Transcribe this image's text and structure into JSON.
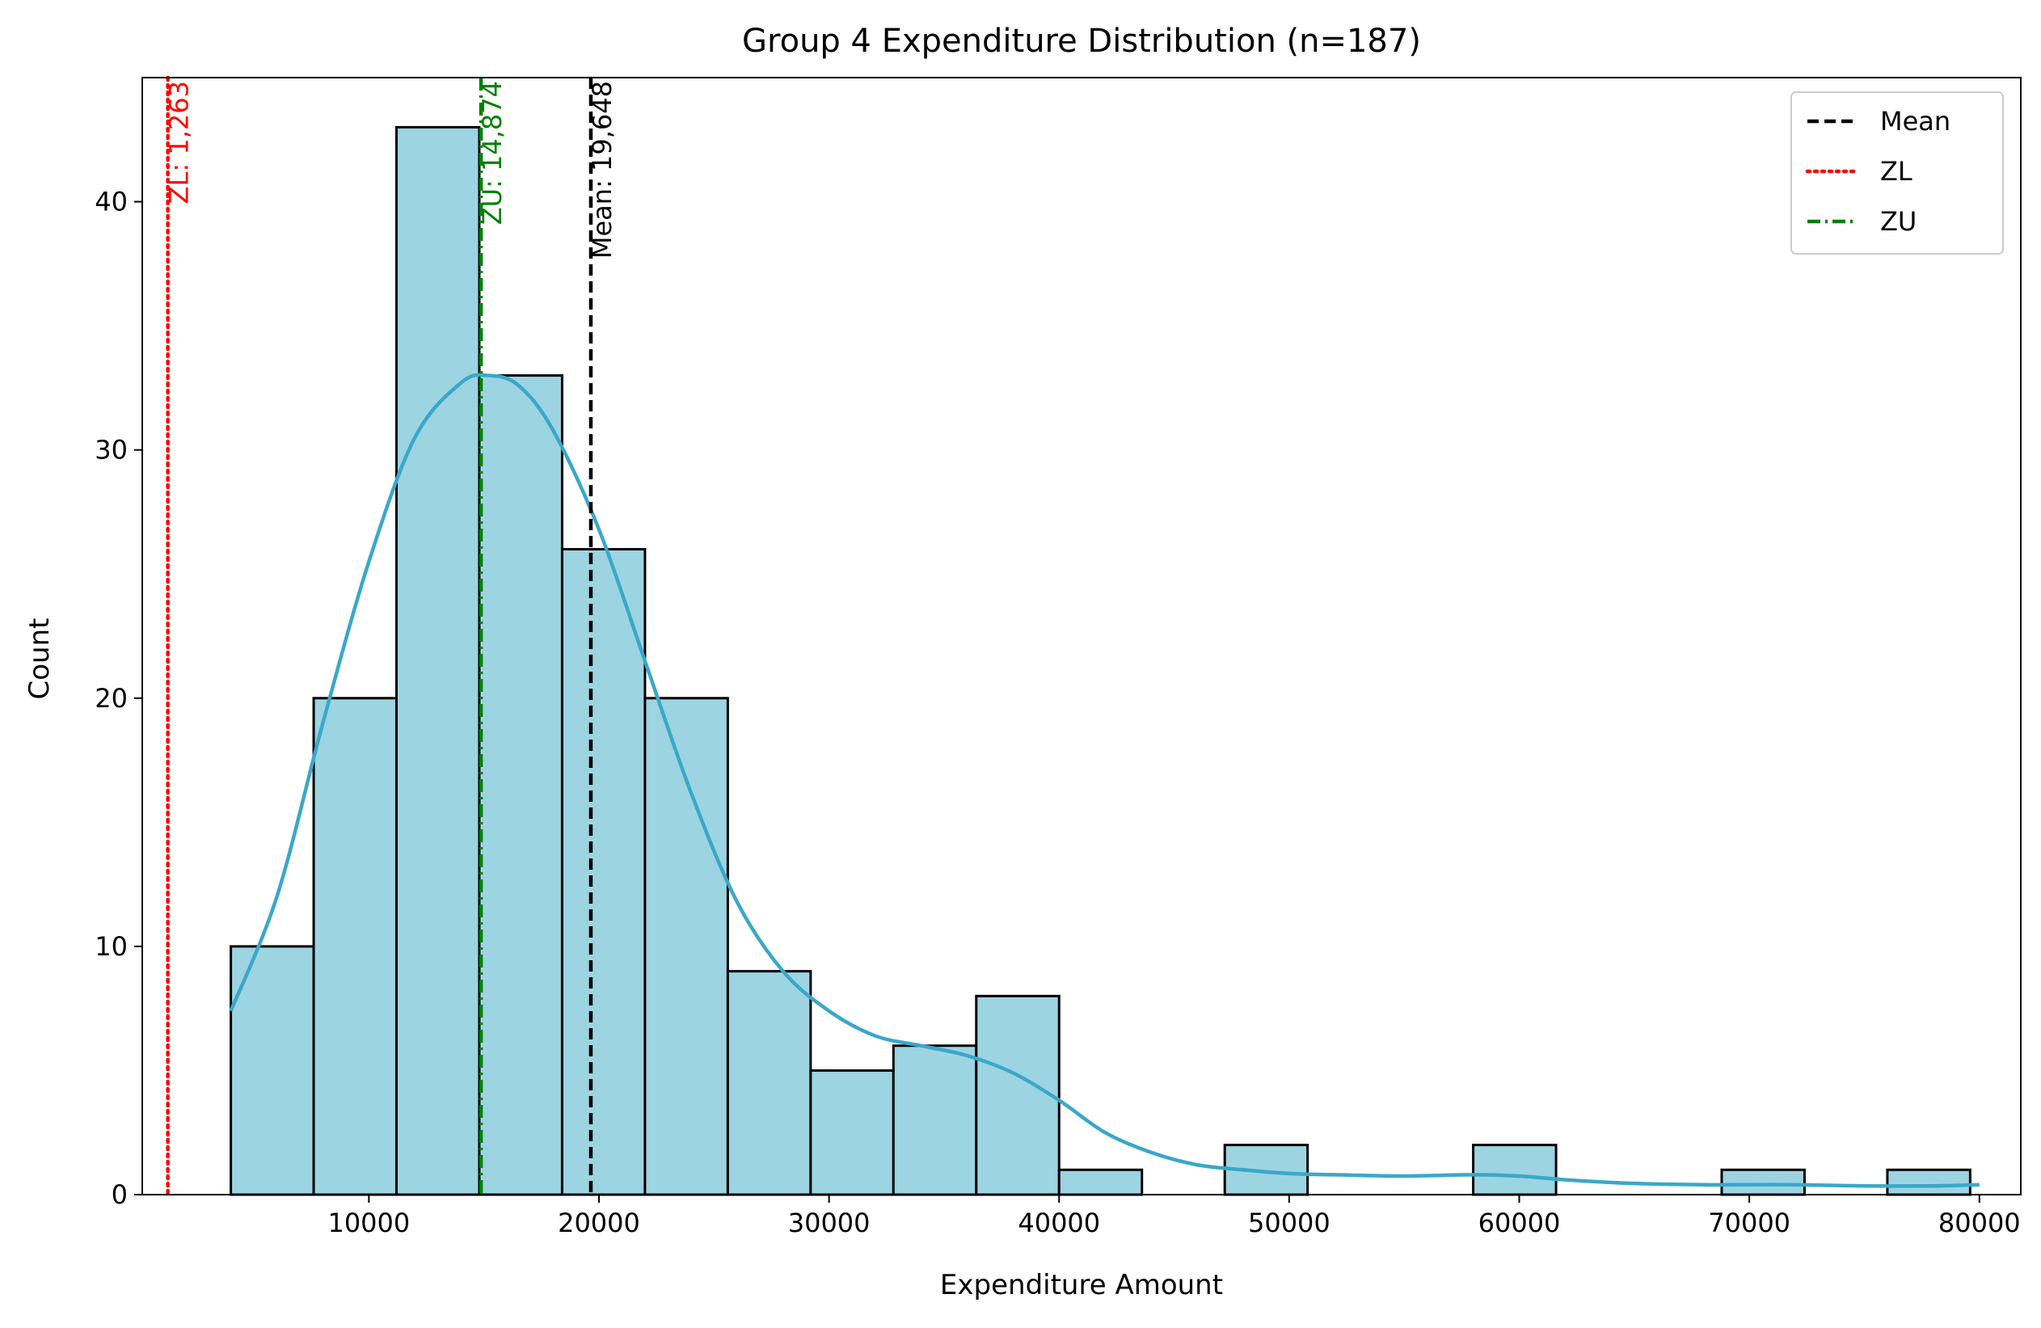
{
  "chart_data": {
    "type": "bar",
    "title": "Group 4 Expenditure Distribution (n=187)",
    "xlabel": "Expenditure Amount",
    "ylabel": "Count",
    "xlim": [
      150,
      81800
    ],
    "ylim": [
      0,
      45
    ],
    "xticks": [
      10000,
      20000,
      30000,
      40000,
      50000,
      60000,
      70000,
      80000
    ],
    "xtick_labels": [
      "10000",
      "20000",
      "30000",
      "40000",
      "50000",
      "60000",
      "70000",
      "80000"
    ],
    "yticks": [
      0,
      10,
      20,
      30,
      40
    ],
    "ytick_labels": [
      "0",
      "10",
      "20",
      "30",
      "40"
    ],
    "grid": false,
    "bins": {
      "edges": [
        4000,
        7600,
        11200,
        14800,
        18400,
        22000,
        25600,
        29200,
        32800,
        36400,
        40000,
        43600,
        47200,
        50800,
        54400,
        58000,
        61600,
        65200,
        68800,
        72400,
        76000,
        79600
      ],
      "counts": [
        10,
        20,
        43,
        33,
        26,
        20,
        9,
        5,
        6,
        8,
        1,
        0,
        2,
        0,
        0,
        2,
        0,
        0,
        1,
        0,
        1
      ]
    },
    "kde": {
      "x": [
        4000,
        6000,
        8000,
        10000,
        12000,
        14000,
        15200,
        16500,
        18000,
        20000,
        22000,
        24000,
        26000,
        28000,
        30000,
        32000,
        34000,
        36000,
        38000,
        40000,
        42000,
        44000,
        46000,
        48000,
        50000,
        52000,
        55000,
        58000,
        60000,
        62000,
        65000,
        68000,
        70000,
        72000,
        75000,
        78000,
        80000
      ],
      "y": [
        7.4,
        12,
        19,
        25.5,
        30.5,
        32.7,
        33,
        32.6,
        30.8,
        26.8,
        21.5,
        16.2,
        11.8,
        9,
        7.4,
        6.4,
        6,
        5.6,
        4.9,
        3.8,
        2.5,
        1.7,
        1.2,
        1.0,
        0.85,
        0.8,
        0.75,
        0.8,
        0.75,
        0.6,
        0.45,
        0.4,
        0.4,
        0.4,
        0.35,
        0.35,
        0.4
      ]
    },
    "reference_lines": [
      {
        "name": "Mean",
        "x": 19648,
        "color": "#000000",
        "style": "dashed",
        "label": "Mean: 19,648"
      },
      {
        "name": "ZL",
        "x": 1263,
        "color": "#ff0000",
        "style": "dotted",
        "label": "ZL: 1,263"
      },
      {
        "name": "ZU",
        "x": 14874,
        "color": "#008000",
        "style": "dashdot",
        "label": "ZU: 14,874"
      }
    ],
    "legend": {
      "placement": "top-right",
      "entries": [
        "Mean",
        "ZL",
        "ZU"
      ]
    },
    "colors": {
      "bar_fill": "#9dd4e2",
      "bar_edge": "#000000",
      "kde_line": "#3aa8c8"
    }
  }
}
